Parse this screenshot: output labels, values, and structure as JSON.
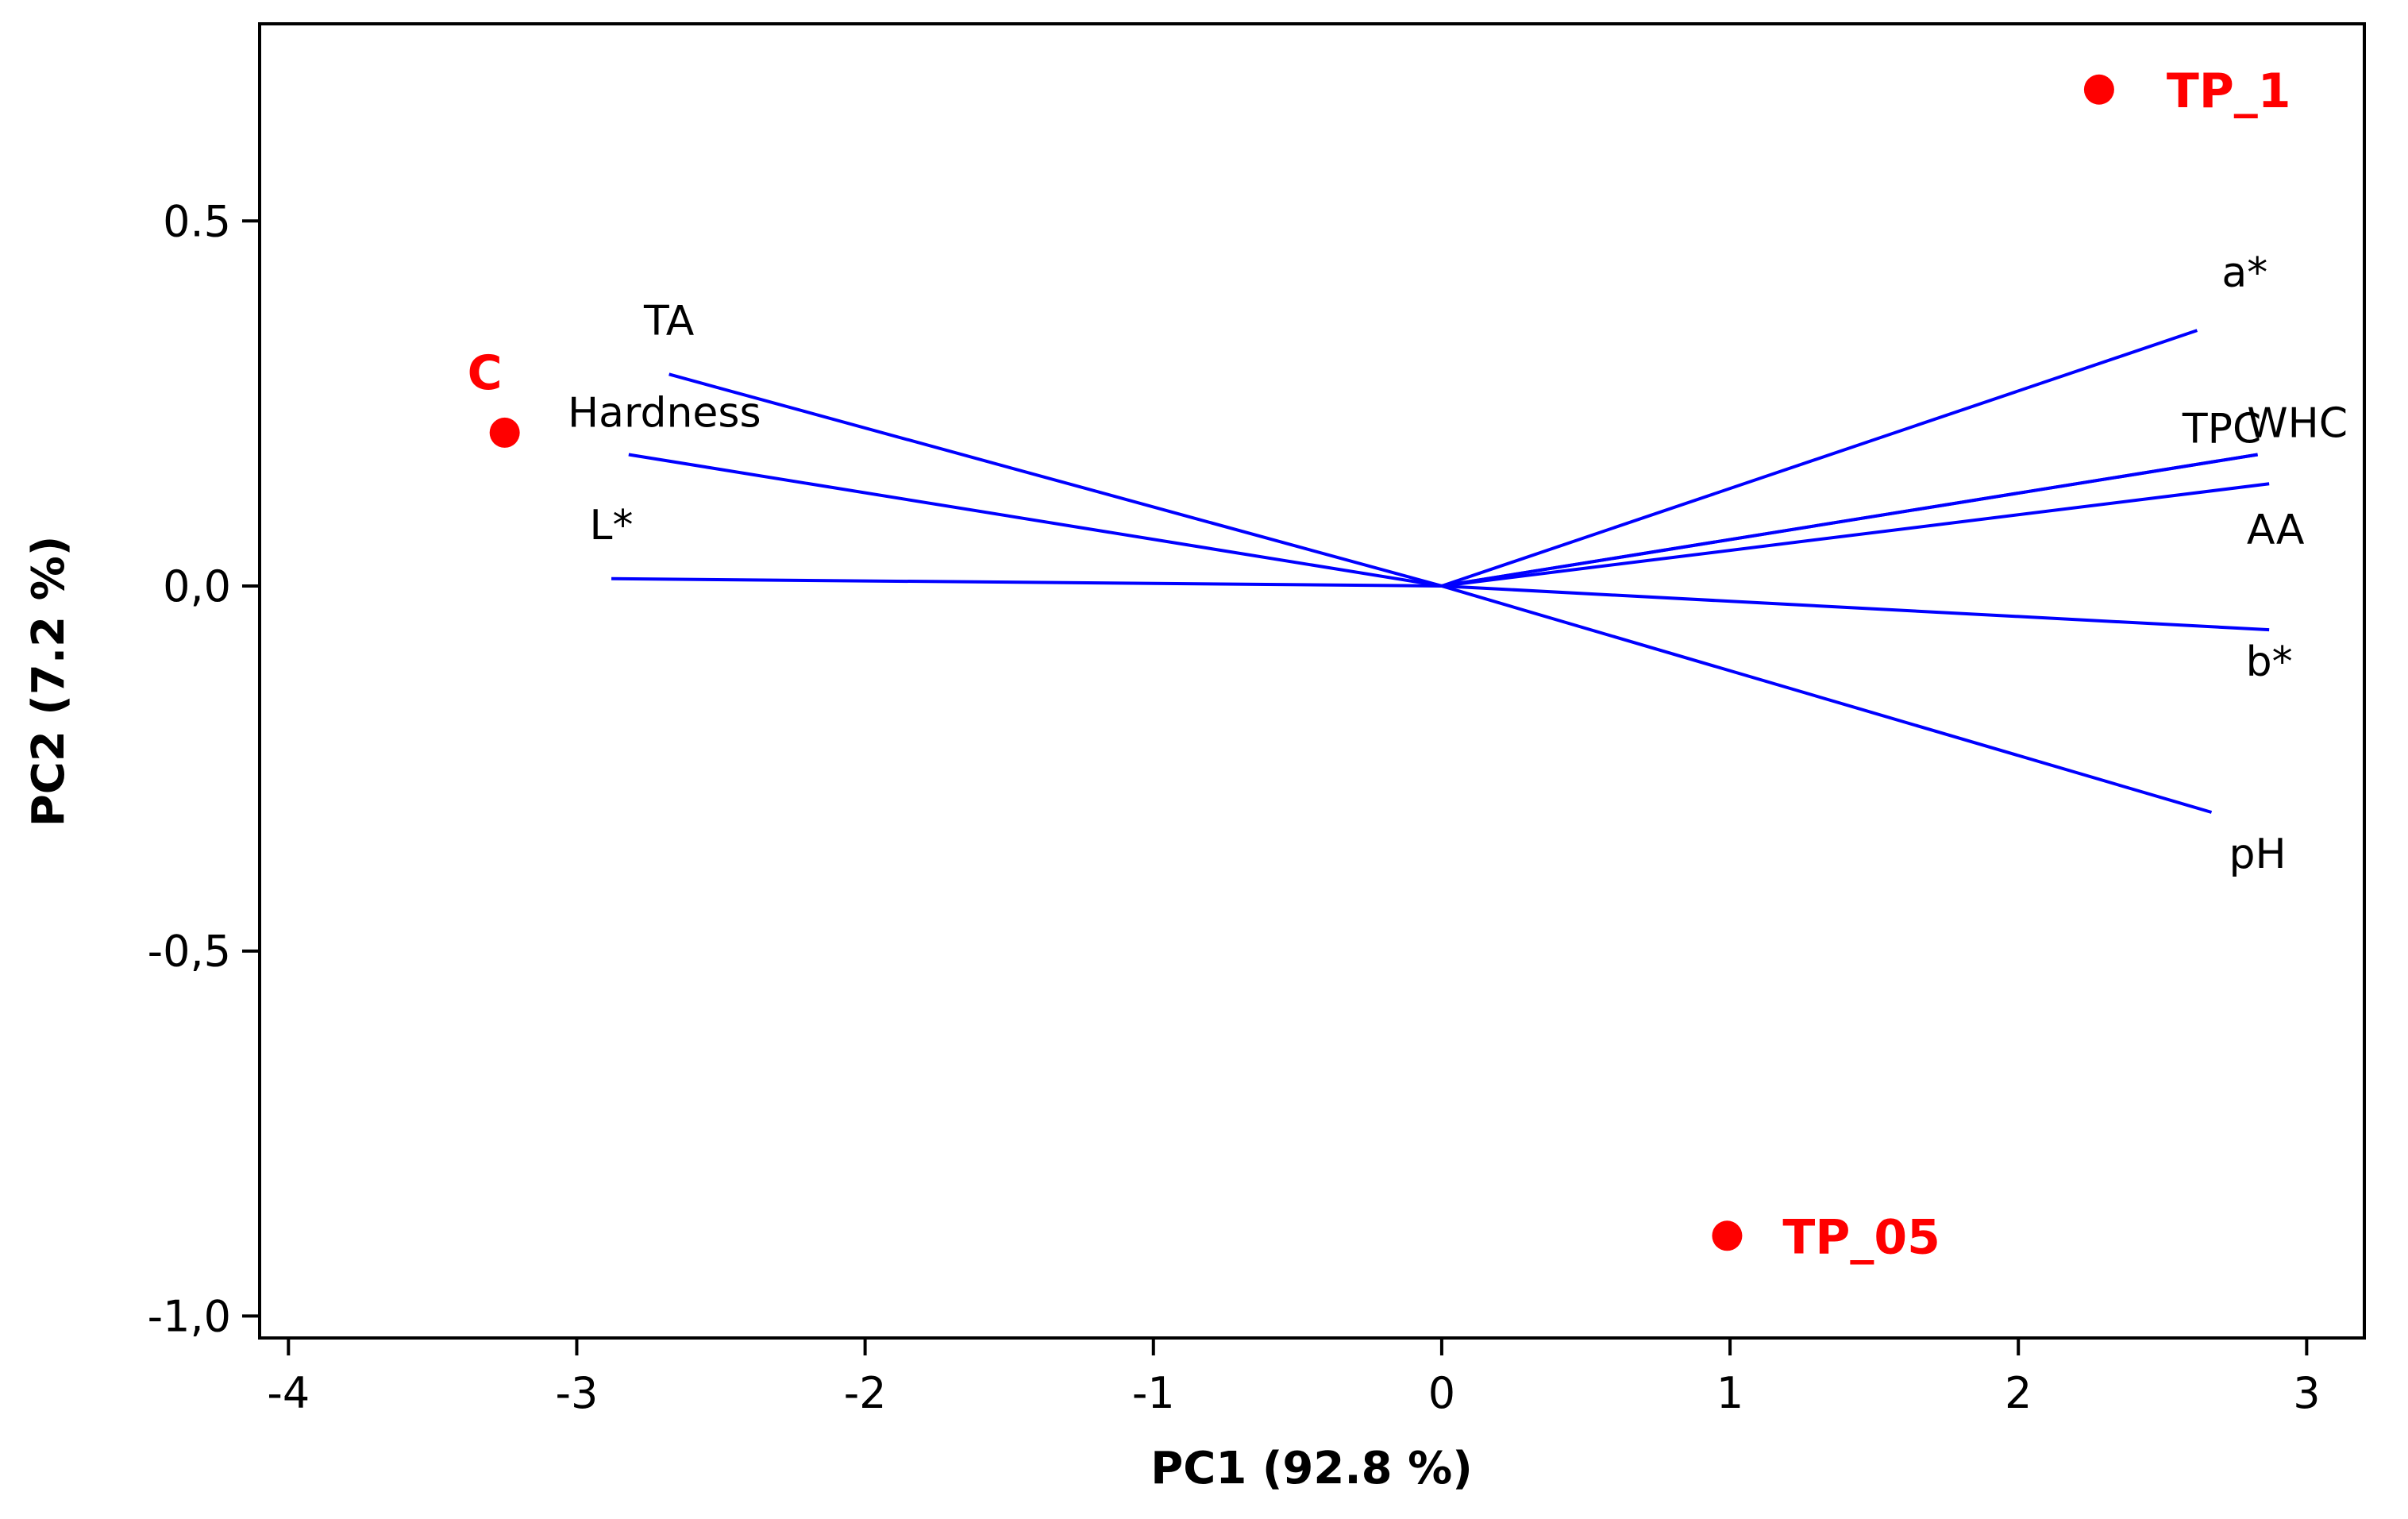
{
  "chart_data": {
    "type": "scatter",
    "subtype": "pca-biplot",
    "title": "",
    "xlabel": "PC1 (92.8 %)",
    "ylabel": "PC2 (7.2 %)",
    "xlim": [
      -4.1,
      3.2
    ],
    "ylim": [
      -1.03,
      0.77
    ],
    "grid": false,
    "x_ticks": [
      {
        "value": -4,
        "label": "-4"
      },
      {
        "value": -3,
        "label": "-3"
      },
      {
        "value": -2,
        "label": "-2"
      },
      {
        "value": -1,
        "label": "-1"
      },
      {
        "value": 0,
        "label": "0"
      },
      {
        "value": 1,
        "label": "1"
      },
      {
        "value": 2,
        "label": "2"
      },
      {
        "value": 3,
        "label": "3"
      }
    ],
    "y_ticks": [
      {
        "value": 0.5,
        "label": "0.5"
      },
      {
        "value": 0,
        "label": "0,0"
      },
      {
        "value": -0.5,
        "label": "-0,5"
      },
      {
        "value": -1,
        "label": "-1,0"
      }
    ],
    "samples": [
      {
        "name": "C",
        "x": -3.25,
        "y": 0.21
      },
      {
        "name": "TP_1",
        "x": 2.28,
        "y": 0.68
      },
      {
        "name": "TP_05",
        "x": 0.99,
        "y": -0.89
      }
    ],
    "loadings": [
      {
        "name": "TA",
        "x": -2.68,
        "y": 0.29
      },
      {
        "name": "Hardness",
        "x": -2.82,
        "y": 0.18
      },
      {
        "name": "L*",
        "x": -2.88,
        "y": 0.01
      },
      {
        "name": "a*",
        "x": 2.62,
        "y": 0.35
      },
      {
        "name": "TPC",
        "x": 2.83,
        "y": 0.18
      },
      {
        "name": "WHC",
        "x": 2.83,
        "y": 0.18
      },
      {
        "name": "AA",
        "x": 2.87,
        "y": 0.14
      },
      {
        "name": "b*",
        "x": 2.87,
        "y": -0.06
      },
      {
        "name": "pH",
        "x": 2.67,
        "y": -0.31
      }
    ],
    "colors": {
      "samples": "#ff0000",
      "loadings": "#0000ff",
      "axes": "#000000"
    }
  }
}
